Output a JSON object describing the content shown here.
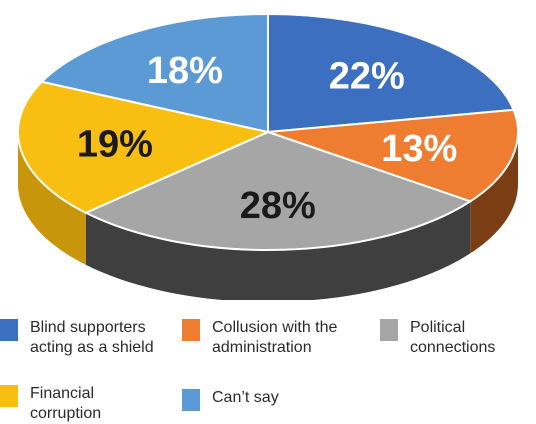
{
  "chart_data": {
    "type": "pie",
    "slices": [
      {
        "label": "Blind supporters\nacting as a shield",
        "value": 22,
        "display": "22%",
        "color": "#3d6fc1",
        "side": "#2a4f8c",
        "text_color": "#ffffff"
      },
      {
        "label": "Collusion with the\nadministration",
        "value": 13,
        "display": "13%",
        "color": "#ee7d31",
        "side": "#7a3d14",
        "text_color": "#ffffff"
      },
      {
        "label": "Political\nconnections",
        "value": 28,
        "display": "28%",
        "color": "#a6a6a6",
        "side": "#3f3f3f",
        "text_color": "#1a1a1a"
      },
      {
        "label": "Financial\ncorruption",
        "value": 19,
        "display": "19%",
        "color": "#f8bf12",
        "side": "#c8960a",
        "text_color": "#1a1a1a"
      },
      {
        "label": "Can’t say",
        "value": 18,
        "display": "18%",
        "color": "#5b9ad4",
        "side": "#3f6f9c",
        "text_color": "#ffffff"
      }
    ],
    "legend_order": [
      0,
      1,
      2,
      3,
      4
    ],
    "legend_position": "bottom"
  }
}
